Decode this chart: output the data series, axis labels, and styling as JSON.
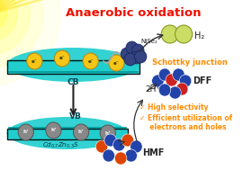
{
  "title": "Anaerobic oxidation",
  "title_color": "#EE1100",
  "title_fontsize": 9.5,
  "background_color": "#FFFFFF",
  "cb_label": "CB",
  "vb_label": "VB",
  "nise2_label": "NiSe₂",
  "h2_label": "H₂",
  "2h_label": "2H⁺",
  "dff_label": "DFF",
  "hmf_label": "HMF",
  "schottky_label": "Schottky junction",
  "schottky_color": "#FF8C00",
  "bullet1": "✓ High selectivity",
  "bullet2": "✓ Efficient utilization of",
  "bullet3": "  electrons and holes",
  "bullet_color": "#FF8C00",
  "teal_color": "#1ECECE",
  "teal_edge": "#0AADAD"
}
